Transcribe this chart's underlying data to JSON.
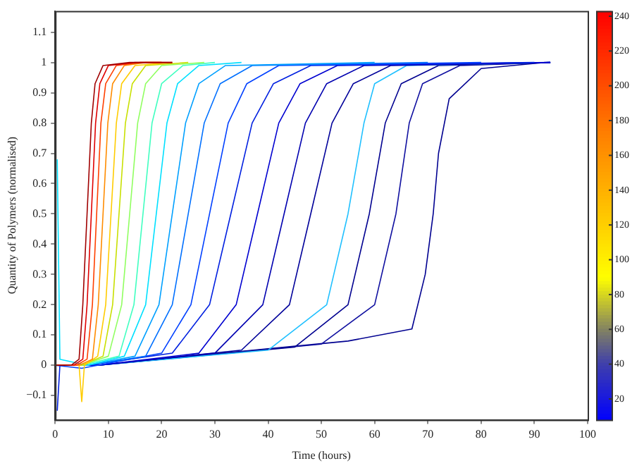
{
  "chart_data": {
    "type": "line",
    "xlabel": "Time (hours)",
    "ylabel": "Quantity of Polymers (normalised)",
    "xlim": [
      0,
      100
    ],
    "xticks": [
      0,
      10,
      20,
      30,
      40,
      50,
      60,
      70,
      80,
      90,
      100
    ],
    "ylim": [
      -0.18,
      1.17
    ],
    "yticks": [
      {
        "value": -0.1,
        "label": "−0.1"
      },
      0,
      0.1,
      0.2,
      0.3,
      0.4,
      0.5,
      0.6,
      0.7,
      0.8,
      0.9,
      1,
      1.1
    ],
    "clim": [
      8,
      243
    ],
    "cticks": [
      20,
      40,
      60,
      80,
      100,
      120,
      140,
      160,
      180,
      200,
      220,
      240
    ],
    "legend": false,
    "grid": false,
    "marker": "none",
    "line_style": "solid",
    "series": [
      {
        "color": "#a00000",
        "x": [
          0,
          3,
          4.5,
          5.2,
          6,
          6.8,
          7.5,
          9,
          14,
          22
        ],
        "values": [
          0,
          0,
          0.02,
          0.2,
          0.5,
          0.8,
          0.93,
          0.99,
          1,
          1
        ]
      },
      {
        "color": "#e00000",
        "x": [
          0,
          3.5,
          5.2,
          6,
          6.8,
          7.6,
          8.4,
          10,
          15,
          22
        ],
        "values": [
          0,
          0,
          0.02,
          0.2,
          0.5,
          0.8,
          0.93,
          0.99,
          1,
          1
        ]
      },
      {
        "color": "#ff4000",
        "x": [
          0,
          4,
          6,
          7,
          7.8,
          8.6,
          9.5,
          11.5,
          16,
          20
        ],
        "values": [
          0,
          0,
          0.02,
          0.2,
          0.5,
          0.8,
          0.93,
          0.99,
          1,
          1
        ]
      },
      {
        "color": "#ff8c00",
        "x": [
          0,
          4.5,
          7,
          8.1,
          9,
          9.9,
          10.8,
          13,
          17,
          20
        ],
        "values": [
          0,
          0,
          0.02,
          0.2,
          0.5,
          0.8,
          0.93,
          0.99,
          1,
          1
        ]
      },
      {
        "color": "#ffcc00",
        "x": [
          0,
          4.5,
          5,
          5.5,
          8,
          9.5,
          10.5,
          11.5,
          12.5,
          15,
          22
        ],
        "values": [
          0,
          0,
          -0.12,
          0,
          0.03,
          0.2,
          0.5,
          0.8,
          0.93,
          0.99,
          1
        ]
      },
      {
        "color": "#c8e000",
        "x": [
          0,
          5,
          9,
          10.8,
          12,
          13.2,
          14.5,
          17,
          25
        ],
        "values": [
          0,
          0,
          0.03,
          0.2,
          0.5,
          0.8,
          0.93,
          0.99,
          1
        ]
      },
      {
        "color": "#90ff60",
        "x": [
          0,
          5,
          10,
          12.5,
          14,
          15.5,
          17,
          20,
          28
        ],
        "values": [
          0,
          0,
          0.03,
          0.2,
          0.5,
          0.8,
          0.93,
          0.99,
          1
        ]
      },
      {
        "color": "#40ffc0",
        "x": [
          0,
          5,
          12,
          14.8,
          16.5,
          18.2,
          20,
          24,
          30
        ],
        "values": [
          0,
          0,
          0.03,
          0.2,
          0.5,
          0.8,
          0.93,
          0.99,
          1
        ]
      },
      {
        "color": "#00e0ff",
        "x": [
          0.4,
          0.9,
          6,
          13,
          17,
          19,
          21,
          23,
          27,
          35
        ],
        "values": [
          0.68,
          0.02,
          0,
          0.03,
          0.2,
          0.5,
          0.8,
          0.93,
          0.99,
          1
        ]
      },
      {
        "color": "#00a0ff",
        "x": [
          0,
          6,
          15,
          19.5,
          22,
          24.5,
          27,
          32,
          60
        ],
        "values": [
          0,
          0,
          0.03,
          0.2,
          0.5,
          0.8,
          0.93,
          0.99,
          1
        ]
      },
      {
        "color": "#0070ff",
        "x": [
          0,
          6,
          17,
          22,
          25,
          28,
          31,
          37,
          70
        ],
        "values": [
          0,
          0,
          0.03,
          0.2,
          0.5,
          0.8,
          0.93,
          0.99,
          1
        ]
      },
      {
        "color": "#0040ff",
        "x": [
          0,
          5,
          20,
          25.5,
          29,
          32.5,
          36,
          42,
          80
        ],
        "values": [
          0,
          -0.01,
          0.04,
          0.2,
          0.5,
          0.8,
          0.93,
          0.99,
          1
        ]
      },
      {
        "color": "#0020e0",
        "x": [
          0.4,
          0.9,
          6,
          22,
          29,
          33,
          37,
          41,
          48,
          90
        ],
        "values": [
          -0.15,
          0,
          0,
          0.04,
          0.2,
          0.5,
          0.8,
          0.93,
          0.99,
          1
        ]
      },
      {
        "color": "#0000d0",
        "x": [
          0,
          8,
          27,
          34,
          38,
          42,
          46,
          53,
          93
        ],
        "values": [
          0,
          0,
          0.04,
          0.2,
          0.5,
          0.8,
          0.93,
          0.99,
          1
        ]
      },
      {
        "color": "#0000b0",
        "x": [
          0,
          8,
          30,
          39,
          43,
          47,
          51,
          58,
          93
        ],
        "values": [
          0,
          0,
          0.04,
          0.2,
          0.5,
          0.8,
          0.93,
          0.99,
          1
        ]
      },
      {
        "color": "#00009a",
        "x": [
          0,
          8,
          35,
          44,
          48,
          52,
          56,
          63,
          93
        ],
        "values": [
          0,
          0,
          0.05,
          0.2,
          0.5,
          0.8,
          0.93,
          0.99,
          1
        ]
      },
      {
        "color": "#20c0ff",
        "x": [
          0,
          8,
          40,
          51,
          55,
          58,
          60,
          66,
          93
        ],
        "values": [
          0,
          0,
          0.05,
          0.2,
          0.5,
          0.8,
          0.93,
          0.99,
          1
        ]
      },
      {
        "color": "#000090",
        "x": [
          0,
          8,
          45,
          55,
          59,
          62,
          65,
          72,
          93
        ],
        "values": [
          0,
          0,
          0.06,
          0.2,
          0.5,
          0.8,
          0.93,
          0.99,
          1
        ]
      },
      {
        "color": "#1010a0",
        "x": [
          0,
          8,
          50,
          60,
          64,
          66.5,
          69,
          76,
          93
        ],
        "values": [
          0,
          0,
          0.07,
          0.2,
          0.5,
          0.8,
          0.93,
          0.99,
          1
        ]
      },
      {
        "color": "#000090",
        "x": [
          0,
          8,
          55,
          67,
          69.5,
          71,
          72,
          74,
          80,
          92
        ],
        "values": [
          0,
          0,
          0.08,
          0.12,
          0.3,
          0.5,
          0.7,
          0.88,
          0.98,
          1
        ]
      }
    ]
  }
}
